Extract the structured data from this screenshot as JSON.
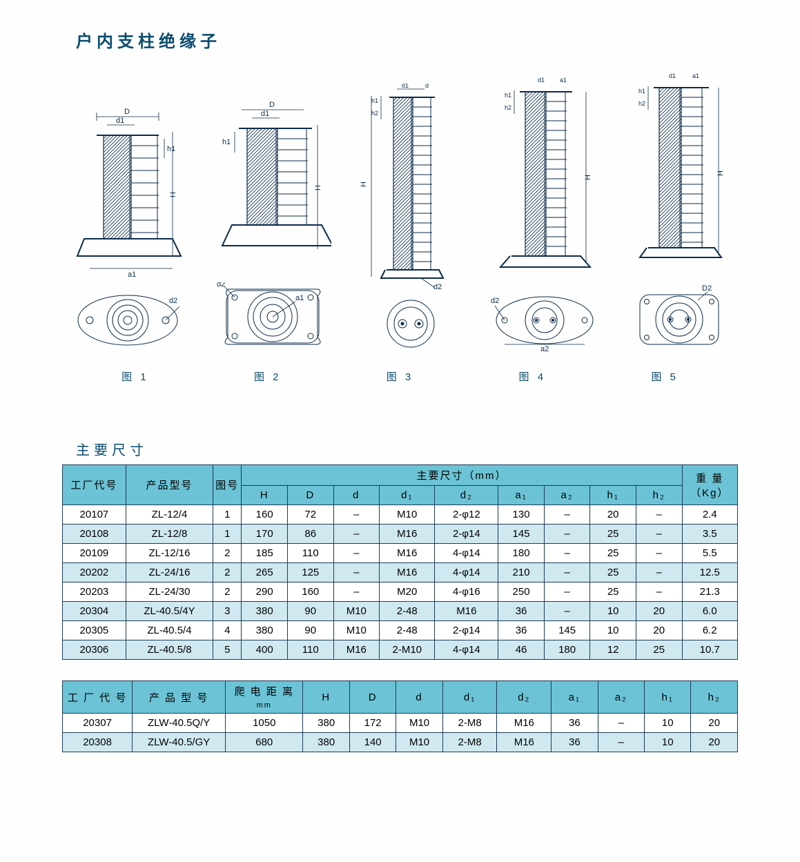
{
  "title": "户内支柱绝缘子",
  "figures": {
    "labels": [
      "图 1",
      "图 2",
      "图 3",
      "图 4",
      "图 5"
    ],
    "dim_D": "D",
    "dim_d1": "d1",
    "dim_h1": "h1",
    "dim_h2": "h2",
    "dim_H": "H",
    "dim_a1": "a1",
    "dim_a2": "a2",
    "dim_d2": "d2",
    "dim_d": "d",
    "dim_D2": "D2"
  },
  "section_label": "主要尺寸",
  "table1": {
    "header_bg": "#6cc3d5",
    "row_odd_bg": "#ffffff",
    "row_even_bg": "#d0e9f0",
    "border_color": "#1b3a5a",
    "h_factory": "工厂代号",
    "h_model": "产品型号",
    "h_fig": "图号",
    "h_dims": "主要尺寸（mm）",
    "h_weight_l1": "重  量",
    "h_weight_l2": "（Kg）",
    "sub": {
      "H": "H",
      "D": "D",
      "d": "d",
      "d1": "d₁",
      "d2": "d₂",
      "a1": "a₁",
      "a2": "a₂",
      "h1": "h₁",
      "h2": "h₂"
    },
    "rows": [
      [
        "20107",
        "ZL-12/4",
        "1",
        "160",
        "72",
        "–",
        "M10",
        "2-φ12",
        "130",
        "–",
        "20",
        "–",
        "2.4"
      ],
      [
        "20108",
        "ZL-12/8",
        "1",
        "170",
        "86",
        "–",
        "M16",
        "2-φ14",
        "145",
        "–",
        "25",
        "–",
        "3.5"
      ],
      [
        "20109",
        "ZL-12/16",
        "2",
        "185",
        "110",
        "–",
        "M16",
        "4-φ14",
        "180",
        "–",
        "25",
        "–",
        "5.5"
      ],
      [
        "20202",
        "ZL-24/16",
        "2",
        "265",
        "125",
        "–",
        "M16",
        "4-φ14",
        "210",
        "–",
        "25",
        "–",
        "12.5"
      ],
      [
        "20203",
        "ZL-24/30",
        "2",
        "290",
        "160",
        "–",
        "M20",
        "4-φ16",
        "250",
        "–",
        "25",
        "–",
        "21.3"
      ],
      [
        "20304",
        "ZL-40.5/4Y",
        "3",
        "380",
        "90",
        "M10",
        "2-48",
        "M16",
        "36",
        "–",
        "10",
        "20",
        "6.0"
      ],
      [
        "20305",
        "ZL-40.5/4",
        "4",
        "380",
        "90",
        "M10",
        "2-48",
        "2-φ14",
        "36",
        "145",
        "10",
        "20",
        "6.2"
      ],
      [
        "20306",
        "ZL-40.5/8",
        "5",
        "400",
        "110",
        "M16",
        "2-M10",
        "4-φ14",
        "46",
        "180",
        "12",
        "25",
        "10.7"
      ]
    ]
  },
  "table2": {
    "h_factory": "工 厂 代 号",
    "h_model": "产 品 型 号",
    "h_creep_l1": "爬 电 距 离",
    "h_creep_l2": "mm",
    "sub": {
      "H": "H",
      "D": "D",
      "d": "d",
      "d1": "d₁",
      "d2": "d₂",
      "a1": "a₁",
      "a2": "a₂",
      "h1": "h₁",
      "h2": "h₂"
    },
    "rows": [
      [
        "20307",
        "ZLW-40.5Q/Y",
        "1050",
        "380",
        "172",
        "M10",
        "2-M8",
        "M16",
        "36",
        "–",
        "10",
        "20"
      ],
      [
        "20308",
        "ZLW-40.5/GY",
        "680",
        "380",
        "140",
        "M10",
        "2-M8",
        "M16",
        "36",
        "–",
        "10",
        "20"
      ]
    ]
  }
}
